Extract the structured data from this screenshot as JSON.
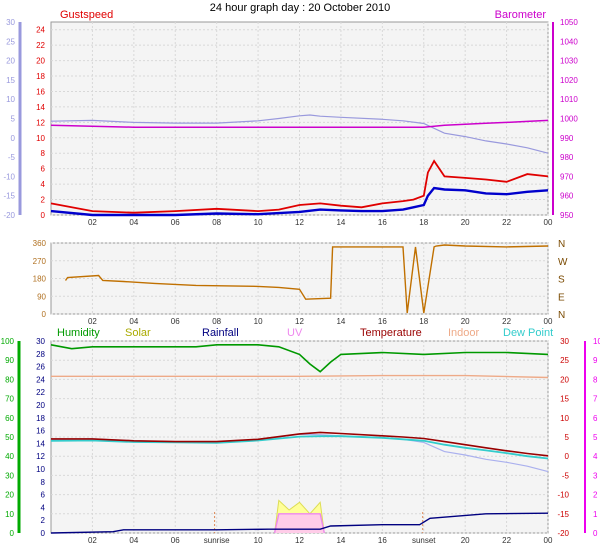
{
  "page": {
    "title": "24 hour graph day : 20 October 2010"
  },
  "colors": {
    "gust": "#e00000",
    "wind": "#0000cc",
    "baro": "#cc00cc",
    "temp_axis": "#9999dd",
    "dir": "#c07000",
    "humidity": "#009900",
    "solar": "#aaaa00",
    "rain": "#000080",
    "uv": "#ee88ee",
    "temperature": "#990000",
    "indoor": "#eeaa88",
    "dew": "#33cccc",
    "left_green": "#00aa00",
    "pink": "#ee00ee",
    "plot_bg": "#f4f4f4",
    "grid": "#d8d8d8"
  },
  "chart_data": [
    {
      "type": "line",
      "title": "",
      "labels": {
        "gust": "Gustspeed",
        "baro": "Barometer"
      },
      "x_ticks": [
        "02",
        "04",
        "06",
        "08",
        "10",
        "12",
        "14",
        "16",
        "18",
        "20",
        "22",
        "00"
      ],
      "left_axis": {
        "ticks": [
          -20,
          -15,
          -10,
          -5,
          0,
          5,
          10,
          15,
          20,
          25,
          30
        ],
        "ylim": [
          -20,
          30
        ]
      },
      "gust_axis": {
        "ticks": [
          0,
          2,
          4,
          6,
          8,
          10,
          12,
          14,
          16,
          18,
          20,
          22,
          24
        ],
        "ylim": [
          0,
          25
        ]
      },
      "baro_axis": {
        "ticks": [
          950,
          960,
          970,
          980,
          990,
          1000,
          1010,
          1020,
          1030,
          1040,
          1050
        ],
        "ylim": [
          950,
          1050
        ]
      },
      "series": [
        {
          "key": "outdoor_temp",
          "axis": "left",
          "x": [
            0,
            2,
            4,
            6,
            8,
            10,
            11,
            12,
            12.5,
            13,
            14,
            16,
            17,
            18,
            19,
            20,
            21,
            22,
            23,
            24
          ],
          "y": [
            4.3,
            4.5,
            4.0,
            3.8,
            3.8,
            4.4,
            5.0,
            5.7,
            5.9,
            5.6,
            5.3,
            4.8,
            4.4,
            3.7,
            1.2,
            0.3,
            -0.8,
            -1.6,
            -2.6,
            -4.0
          ]
        },
        {
          "key": "barometer",
          "axis": "baro",
          "x": [
            0,
            4,
            8,
            12,
            14,
            16,
            17,
            18,
            19,
            20,
            21,
            22,
            23,
            24
          ],
          "y": [
            996.5,
            995.5,
            995.5,
            995.5,
            995.5,
            995.5,
            995.5,
            995.5,
            996.5,
            997,
            997.5,
            998,
            998.5,
            999
          ]
        },
        {
          "key": "gust",
          "axis": "gust",
          "x": [
            0,
            2,
            4,
            6,
            8,
            10,
            11,
            12,
            13,
            14,
            15,
            16,
            17,
            17.5,
            18,
            18.2,
            18.5,
            19,
            20,
            21,
            22,
            23,
            24
          ],
          "y": [
            1.5,
            0.5,
            0.3,
            0.5,
            0.8,
            0.5,
            0.7,
            1.3,
            1.5,
            1.2,
            1.0,
            1.5,
            1.8,
            2.0,
            2.5,
            5.5,
            7.0,
            5.0,
            4.8,
            4.6,
            4.3,
            5.3,
            5.0
          ]
        },
        {
          "key": "windspeed",
          "axis": "gust",
          "x": [
            0,
            2,
            4,
            6,
            8,
            10,
            12,
            13,
            14,
            15,
            16,
            17,
            17.5,
            18,
            18.2,
            18.5,
            19,
            20,
            21,
            22,
            23,
            24
          ],
          "y": [
            0.5,
            0,
            0,
            0,
            0.2,
            0.1,
            0.4,
            0.7,
            0.6,
            0.5,
            0.5,
            0.7,
            1.0,
            1.3,
            2.5,
            3.5,
            3.3,
            3.2,
            2.8,
            2.7,
            3.0,
            3.2
          ]
        }
      ]
    },
    {
      "type": "line",
      "title": "",
      "x_ticks": [
        "02",
        "04",
        "06",
        "08",
        "10",
        "12",
        "14",
        "16",
        "18",
        "20",
        "22",
        "00"
      ],
      "y_ticks": [
        0,
        90,
        180,
        270,
        360
      ],
      "ylim": [
        0,
        360
      ],
      "compass": [
        "N",
        "W",
        "S",
        "E",
        "N"
      ],
      "series": [
        {
          "key": "wind_direction",
          "x": [
            0.7,
            0.8,
            2.3,
            2.5,
            3.5,
            5,
            7,
            10,
            11,
            12,
            12.3,
            13.5,
            13.6,
            14,
            16,
            17,
            17.2,
            17.6,
            18,
            18.5,
            18.6,
            19,
            20,
            22,
            24
          ],
          "y": [
            170,
            185,
            195,
            170,
            165,
            155,
            145,
            140,
            135,
            125,
            75,
            80,
            340,
            340,
            340,
            340,
            5,
            340,
            5,
            340,
            345,
            350,
            345,
            340,
            345
          ]
        }
      ]
    },
    {
      "type": "line",
      "title": "",
      "labels": {
        "humidity": "Humidity",
        "solar": "Solar",
        "rainfall": "Rainfall",
        "uv": "UV",
        "temperature": "Temperature",
        "indoor": "Indoor",
        "dewpoint": "Dew Point"
      },
      "markers": {
        "sunrise": "sunrise",
        "sunset": "sunset"
      },
      "x_ticks": [
        "02",
        "04",
        "06",
        "08",
        "10",
        "12",
        "14",
        "16",
        "18",
        "20",
        "22",
        "00"
      ],
      "x_tick_labels": [
        "02",
        "04",
        "06",
        "sunrise",
        "10",
        "12",
        "14",
        "16",
        "sunset",
        "20",
        "22",
        "00"
      ],
      "humidity_axis": {
        "ticks": [
          0,
          10,
          20,
          30,
          40,
          50,
          60,
          70,
          80,
          90,
          100
        ],
        "ylim": [
          0,
          100
        ]
      },
      "rain_axis": {
        "ticks": [
          0,
          2,
          4,
          6,
          8,
          10,
          12,
          14,
          16,
          18,
          20,
          22,
          24,
          26,
          28,
          30
        ],
        "ylim": [
          0,
          30
        ]
      },
      "temp_axis": {
        "ticks": [
          -20,
          -15,
          -10,
          -5,
          0,
          5,
          10,
          15,
          20,
          25,
          30
        ],
        "ylim": [
          -20,
          30
        ]
      },
      "uv_axis": {
        "ticks": [
          0,
          1,
          2,
          3,
          4,
          5,
          6,
          7,
          8,
          9,
          10
        ],
        "ylim": [
          0,
          10
        ]
      },
      "series": [
        {
          "key": "humidity",
          "axis": "humidity",
          "x": [
            0,
            1,
            2,
            3,
            4,
            5,
            6,
            7,
            8,
            9,
            10,
            11,
            12,
            12.5,
            13,
            13.5,
            14,
            16,
            18,
            20,
            22,
            24
          ],
          "y": [
            98,
            96,
            97,
            97,
            97,
            97,
            97,
            97,
            98,
            98,
            98,
            97,
            93,
            88,
            84,
            89,
            93,
            94,
            93,
            94,
            94,
            93
          ]
        },
        {
          "key": "temperature",
          "axis": "temp",
          "x": [
            0,
            2,
            4,
            6,
            8,
            10,
            12,
            13,
            14,
            16,
            17,
            18,
            19,
            20,
            21,
            22,
            23,
            24
          ],
          "y": [
            4.5,
            4.5,
            4.0,
            3.8,
            3.8,
            4.4,
            5.8,
            6.2,
            5.9,
            5.3,
            5.0,
            4.6,
            3.8,
            3.0,
            2.2,
            1.4,
            0.7,
            0.1
          ]
        },
        {
          "key": "dewpoint",
          "axis": "temp",
          "x": [
            0,
            2,
            4,
            6,
            8,
            10,
            12,
            13,
            14,
            16,
            17,
            18,
            19,
            20,
            21,
            22,
            23,
            24
          ],
          "y": [
            4.0,
            4.1,
            3.7,
            3.6,
            3.5,
            4.1,
            5.1,
            5.2,
            5.2,
            4.8,
            4.4,
            4.0,
            3.0,
            2.2,
            1.5,
            0.8,
            0.0,
            -0.6
          ]
        },
        {
          "key": "outdoor_temp",
          "axis": "temp",
          "x": [
            0,
            2,
            4,
            6,
            8,
            10,
            11,
            12,
            13,
            14,
            16,
            17,
            18,
            19,
            20,
            21,
            22,
            23,
            24
          ],
          "y": [
            4.3,
            4.5,
            4.0,
            3.8,
            3.8,
            4.4,
            5.0,
            5.7,
            5.6,
            5.3,
            4.8,
            4.4,
            3.6,
            1.2,
            0.3,
            -0.8,
            -1.6,
            -2.6,
            -4.0
          ]
        },
        {
          "key": "indoor",
          "axis": "temp",
          "x": [
            0,
            4,
            8,
            12,
            16,
            20,
            24
          ],
          "y": [
            20.8,
            20.8,
            20.8,
            20.8,
            21.0,
            21.0,
            20.5
          ]
        },
        {
          "key": "rainfall",
          "axis": "rain",
          "x": [
            0,
            3,
            3.5,
            8,
            10.5,
            13,
            13.5,
            16,
            17.8,
            18.3,
            21,
            24
          ],
          "y": [
            0,
            0.2,
            0.5,
            0.5,
            0.6,
            0.6,
            1.1,
            1.3,
            1.3,
            2.3,
            3.0,
            3.1
          ]
        },
        {
          "key": "solar",
          "axis": "uv",
          "x": [
            10.8,
            11,
            11.5,
            12,
            12.5,
            13,
            13.2
          ],
          "y": [
            0,
            1.7,
            1.2,
            1.6,
            1.0,
            1.6,
            0
          ]
        },
        {
          "key": "uv",
          "axis": "uv",
          "x": [
            10.8,
            11,
            13,
            13.2
          ],
          "y": [
            0,
            1.0,
            1.0,
            0
          ]
        }
      ]
    }
  ]
}
